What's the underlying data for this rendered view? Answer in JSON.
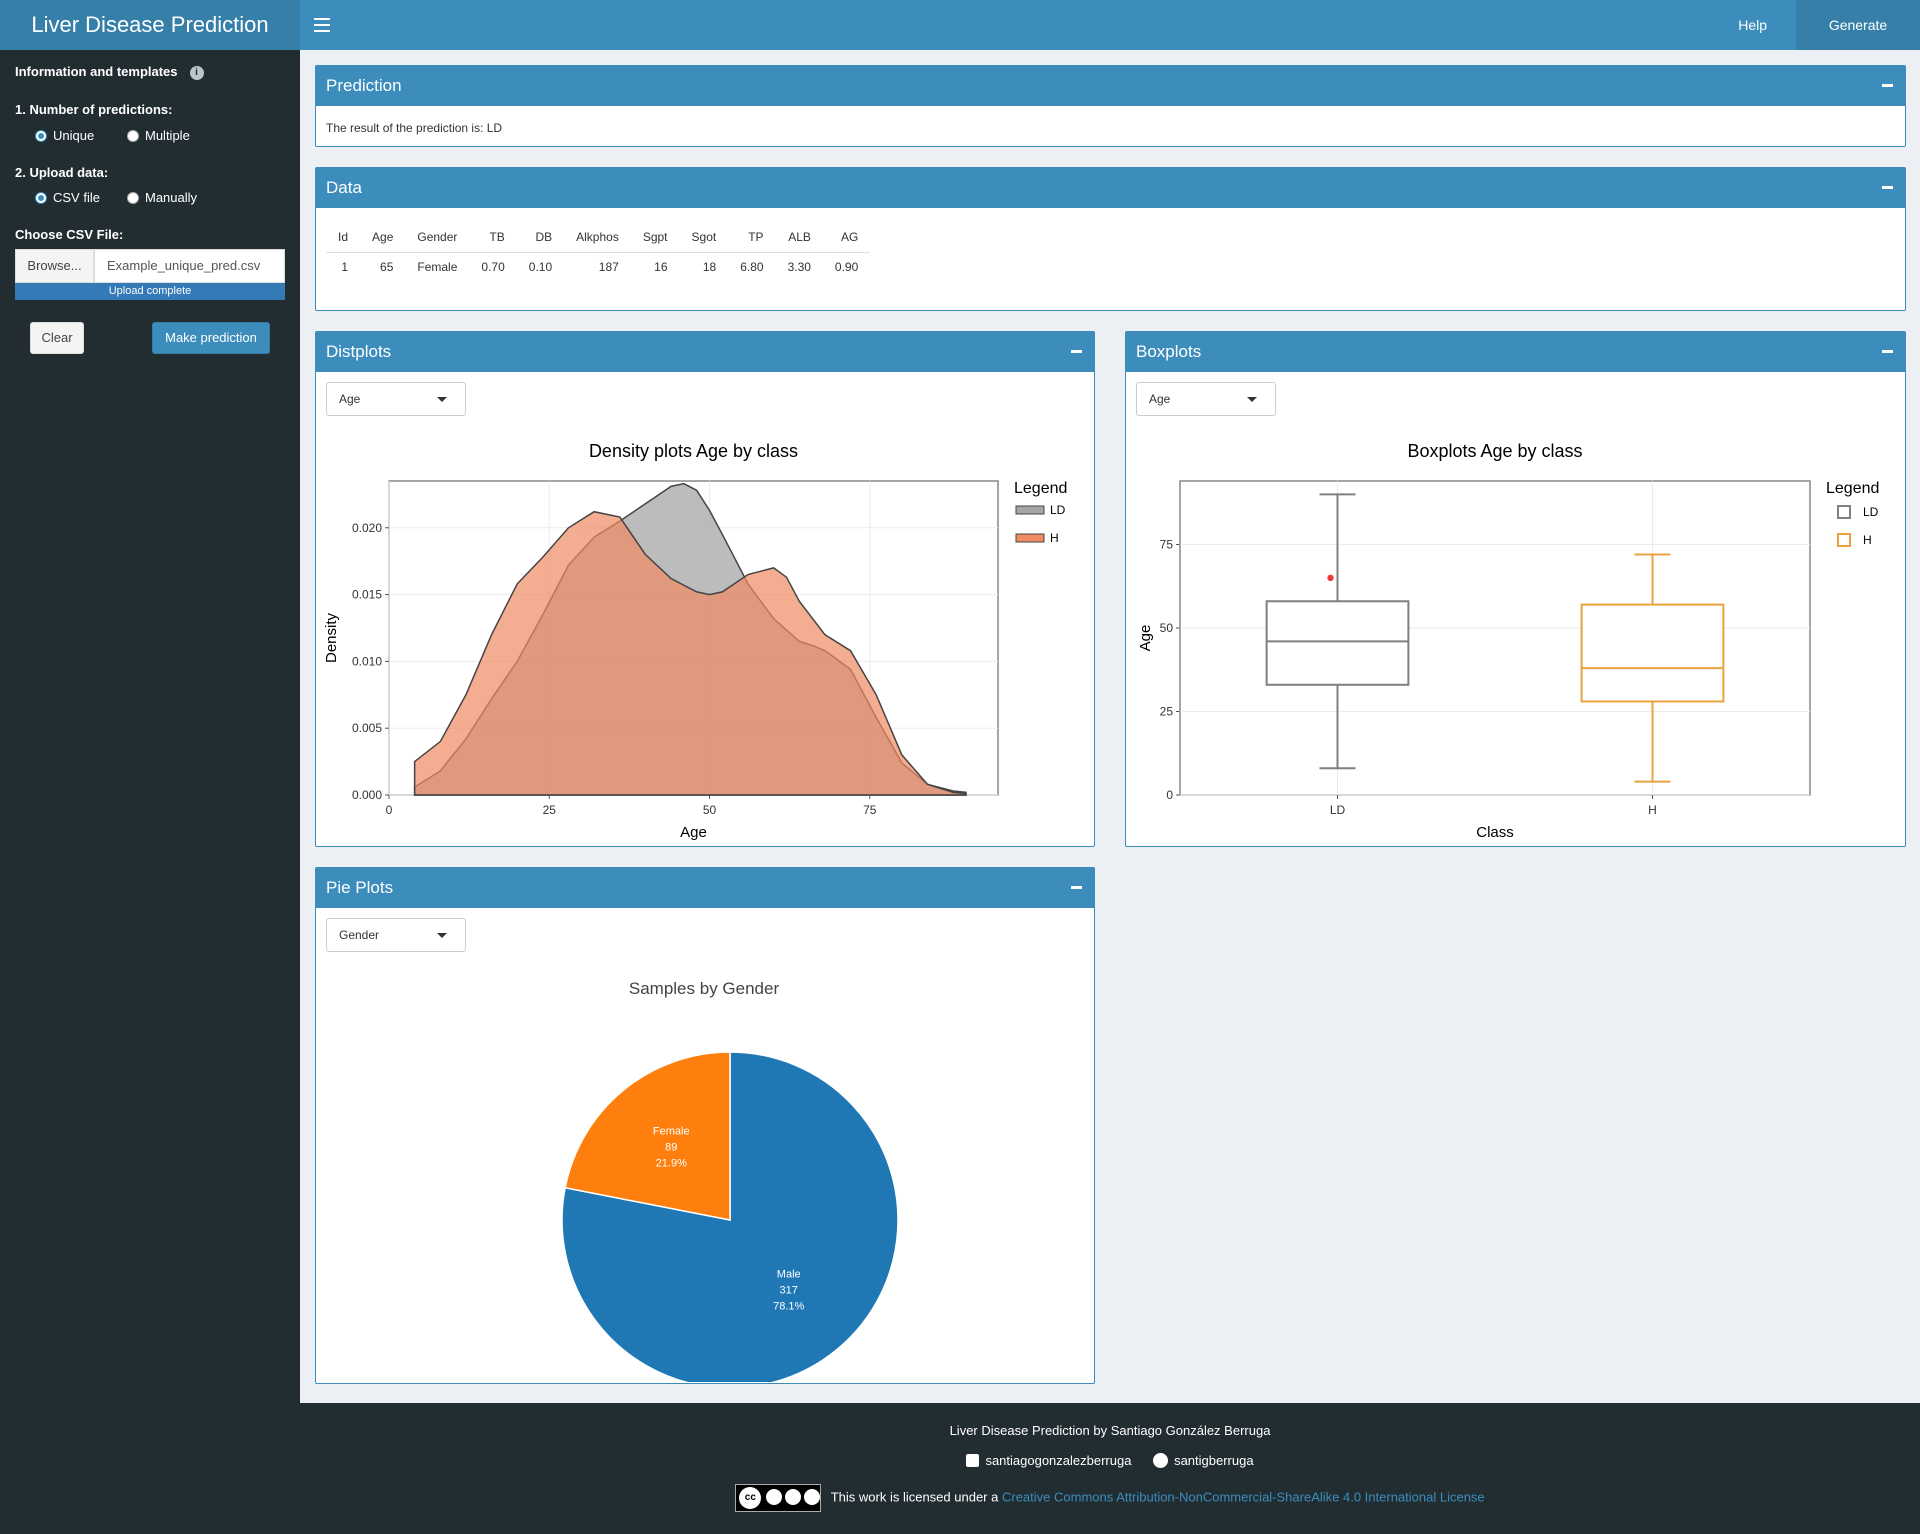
{
  "app": {
    "title": "Liver Disease Prediction"
  },
  "navbar": {
    "help": "Help",
    "generate_report": "Generate report"
  },
  "sidebar": {
    "info": "Information and templates",
    "num_predictions_label": "1. Number of predictions:",
    "num_options": [
      "Unique",
      "Multiple"
    ],
    "num_selected": "Unique",
    "upload_label": "2. Upload data:",
    "upload_options": [
      "CSV file",
      "Manually"
    ],
    "upload_selected": "CSV file",
    "choose_csv": "Choose CSV File:",
    "browse": "Browse...",
    "file_name": "Example_unique_pred.csv",
    "upload_status": "Upload complete",
    "clear": "Clear",
    "make_prediction": "Make prediction"
  },
  "prediction": {
    "title": "Prediction",
    "result": "The result of the prediction is: LD"
  },
  "data": {
    "title": "Data",
    "columns": [
      "Id",
      "Age",
      "Gender",
      "TB",
      "DB",
      "Alkphos",
      "Sgpt",
      "Sgot",
      "TP",
      "ALB",
      "AG"
    ],
    "rows": [
      [
        "1",
        "65",
        "Female",
        "0.70",
        "0.10",
        "187",
        "16",
        "18",
        "6.80",
        "3.30",
        "0.90"
      ]
    ]
  },
  "distplots": {
    "title": "Distplots",
    "selected": "Age"
  },
  "boxplots": {
    "title": "Boxplots",
    "selected": "Age"
  },
  "pieplots": {
    "title": "Pie Plots",
    "selected": "Gender"
  },
  "chart_data": [
    {
      "type": "area",
      "title": "Density plots Age by class",
      "xlabel": "Age",
      "ylabel": "Density",
      "xlim": [
        0,
        95
      ],
      "ylim": [
        0,
        0.0235
      ],
      "xticks": [
        0,
        25,
        50,
        75
      ],
      "yticks": [
        "0.000",
        "0.005",
        "0.010",
        "0.015",
        "0.020"
      ],
      "legend_title": "Legend",
      "legend_position": "right",
      "grid": true,
      "series": [
        {
          "name": "LD",
          "color": "#a6a6a6",
          "x": [
            4,
            8,
            12,
            16,
            20,
            24,
            28,
            32,
            36,
            40,
            44,
            46,
            48,
            50,
            52,
            56,
            60,
            64,
            66,
            68,
            72,
            76,
            80,
            84,
            88,
            90
          ],
          "y": [
            0.0006,
            0.0018,
            0.0042,
            0.0072,
            0.01,
            0.0135,
            0.0172,
            0.0193,
            0.0205,
            0.0218,
            0.0231,
            0.0233,
            0.0228,
            0.0213,
            0.0195,
            0.0158,
            0.0132,
            0.0115,
            0.0112,
            0.0108,
            0.0094,
            0.0058,
            0.0024,
            0.0008,
            0.0003,
            0.0002
          ]
        },
        {
          "name": "H",
          "color": "#f08a63",
          "x": [
            4,
            8,
            12,
            16,
            20,
            24,
            28,
            32,
            36,
            40,
            44,
            48,
            50,
            52,
            56,
            60,
            62,
            64,
            68,
            72,
            76,
            80,
            84,
            88,
            90
          ],
          "y": [
            0.0025,
            0.004,
            0.0075,
            0.012,
            0.0158,
            0.0178,
            0.02,
            0.0212,
            0.0208,
            0.018,
            0.0162,
            0.0152,
            0.015,
            0.0152,
            0.0165,
            0.017,
            0.0163,
            0.0145,
            0.012,
            0.0108,
            0.0075,
            0.003,
            0.0008,
            0.0002,
            0.0001
          ]
        }
      ]
    },
    {
      "type": "box",
      "title": "Boxplots Age by class",
      "xlabel": "Class",
      "ylabel": "Age",
      "ylim": [
        0,
        94
      ],
      "yticks": [
        0,
        25,
        50,
        75
      ],
      "categories": [
        "LD",
        "H"
      ],
      "legend_title": "Legend",
      "legend_position": "right",
      "series": [
        {
          "name": "LD",
          "color": "#7f7f7f",
          "min": 8,
          "q1": 33,
          "median": 46,
          "q3": 58,
          "max": 90,
          "outliers": [
            65
          ],
          "outlier_color": "#ef3b3b"
        },
        {
          "name": "H",
          "color": "#e8a33d",
          "min": 4,
          "q1": 28,
          "median": 38,
          "q3": 57,
          "max": 72,
          "outliers": []
        }
      ]
    },
    {
      "type": "pie",
      "title": "Samples by Gender",
      "slices": [
        {
          "label": "Male",
          "value": 317,
          "percent": "78.1%",
          "color": "#1f77b4"
        },
        {
          "label": "Female",
          "value": 89,
          "percent": "21.9%",
          "color": "#ff7f0e"
        }
      ]
    }
  ],
  "footer": {
    "byline": "Liver Disease Prediction by Santiago González Berruga",
    "linkedin": "santiagogonzalezberruga",
    "github": "santigberruga",
    "license_prefix": "This work is licensed under a",
    "license_link": "Creative Commons Attribution-NonCommercial-ShareAlike 4.0 International License",
    "cc_text": "cc"
  }
}
